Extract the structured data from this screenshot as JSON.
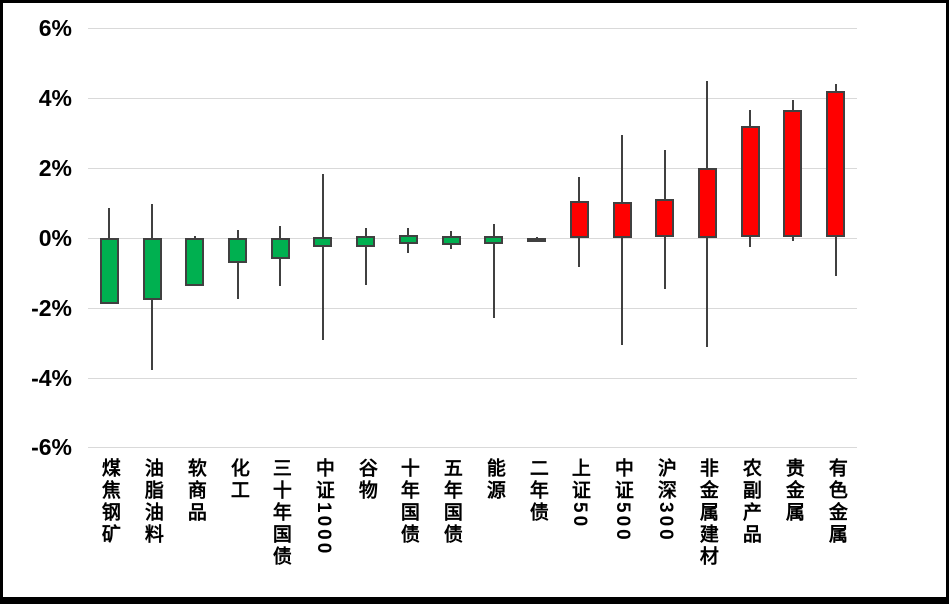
{
  "chart_data": {
    "type": "candlestick",
    "title": "",
    "xlabel": "",
    "ylabel": "",
    "legend": false,
    "grid": true,
    "y_axis": {
      "tick_labels": [
        "6%",
        "4%",
        "2%",
        "0%",
        "-2%",
        "-4%",
        "-6%"
      ],
      "tick_values": [
        6,
        4,
        2,
        0,
        -2,
        -4,
        -6
      ],
      "ylim": [
        -6,
        6
      ],
      "unit": "percent"
    },
    "categories": [
      "煤焦钢矿",
      "油脂油料",
      "软商品",
      "化工",
      "三十年国债",
      "中证1000",
      "谷物",
      "十年国债",
      "五年国债",
      "能源",
      "二年债",
      "上证50",
      "中证500",
      "沪深300",
      "非金属建材",
      "农副产品",
      "贵金属",
      "有色金属"
    ],
    "candles": [
      {
        "category": "煤焦钢矿",
        "open": 0.0,
        "close": -1.88,
        "high": 0.84,
        "low": -1.88
      },
      {
        "category": "油脂油料",
        "open": 0.0,
        "close": -1.77,
        "high": 0.95,
        "low": -3.79
      },
      {
        "category": "软商品",
        "open": 0.0,
        "close": -1.36,
        "high": 0.06,
        "low": -1.36
      },
      {
        "category": "化工",
        "open": 0.0,
        "close": -0.71,
        "high": 0.22,
        "low": -1.74
      },
      {
        "category": "三十年国债",
        "open": 0.0,
        "close": -0.6,
        "high": 0.34,
        "low": -1.39
      },
      {
        "category": "中证1000",
        "open": 0.02,
        "close": -0.28,
        "high": 1.83,
        "low": -2.93
      },
      {
        "category": "谷物",
        "open": 0.04,
        "close": -0.28,
        "high": 0.29,
        "low": -1.33
      },
      {
        "category": "十年国债",
        "open": 0.07,
        "close": -0.19,
        "high": 0.28,
        "low": -0.43
      },
      {
        "category": "五年国债",
        "open": 0.05,
        "close": -0.2,
        "high": 0.19,
        "low": -0.32
      },
      {
        "category": "能源",
        "open": 0.05,
        "close": -0.18,
        "high": 0.39,
        "low": -2.31
      },
      {
        "category": "二年债",
        "open": 0.0,
        "close": -0.08,
        "high": 0.02,
        "low": -0.12
      },
      {
        "category": "上证50",
        "open": 0.0,
        "close": 1.05,
        "high": 1.74,
        "low": -0.83
      },
      {
        "category": "中证500",
        "open": 0.0,
        "close": 1.03,
        "high": 2.94,
        "low": -3.08
      },
      {
        "category": "沪深300",
        "open": 0.0,
        "close": 1.1,
        "high": 2.52,
        "low": -1.46
      },
      {
        "category": "非金属建材",
        "open": 0.0,
        "close": 2.0,
        "high": 4.47,
        "low": -3.14
      },
      {
        "category": "农副产品",
        "open": 0.0,
        "close": 3.19,
        "high": 3.64,
        "low": -0.27
      },
      {
        "category": "贵金属",
        "open": 0.0,
        "close": 3.64,
        "high": 3.93,
        "low": -0.1
      },
      {
        "category": "有色金属",
        "open": 0.0,
        "close": 4.19,
        "high": 4.4,
        "low": -1.09
      }
    ],
    "colors": {
      "up": "#FF0000",
      "down": "#00B050",
      "wick": "#404040",
      "body_border": "#404040",
      "gridline": "#D9D9D9",
      "background": "#FFFFFF",
      "frame": "#000000",
      "text": "#000000"
    }
  }
}
